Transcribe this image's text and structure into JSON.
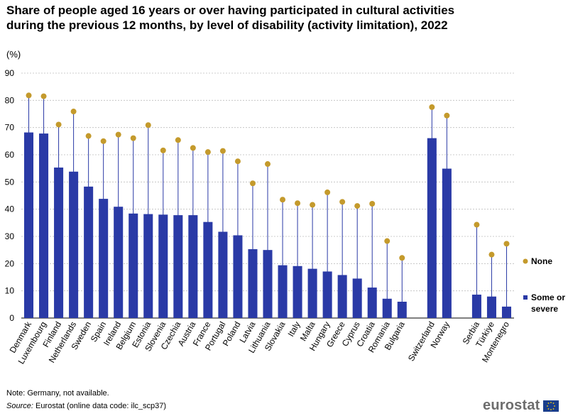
{
  "title": "Share of people aged 16 years or over having participated in cultural activities during the previous 12 months, by level of disability (activity limitation), 2022",
  "unit": "(%)",
  "note": "Note: Germany, not available.",
  "source_label": "Source:",
  "source_text": " Eurostat (online data code: ilc_scp37)",
  "logo_text": "eurostat",
  "colors": {
    "bar": "#2a3aa6",
    "dot": "#c49a2c",
    "grid": "#bdbdbd",
    "stem": "#2a3aa6"
  },
  "chart_data": {
    "type": "bar",
    "title": "Share of people aged 16 years or over having participated in cultural activities during the previous 12 months, by level of disability (activity limitation), 2022",
    "ylabel": "(%)",
    "xlabel": "",
    "ylim": [
      0,
      90
    ],
    "yticks": [
      0,
      10,
      20,
      30,
      40,
      50,
      60,
      70,
      80,
      90
    ],
    "grid": true,
    "legend_position": "right",
    "categories": [
      "Denmark",
      "Luxembourg",
      "Finland",
      "Netherlands",
      "Sweden",
      "Spain",
      "Ireland",
      "Belgium",
      "Estonia",
      "Slovenia",
      "Czechia",
      "Austria",
      "France",
      "Portugal",
      "Poland",
      "Latvia",
      "Lithuania",
      "Slovakia",
      "Italy",
      "Malta",
      "Hungary",
      "Greece",
      "Cyprus",
      "Croatia",
      "Romania",
      "Bulgaria",
      "",
      "Switzerland",
      "Norway",
      "",
      "Serbia",
      "Türkiye",
      "Montenegro"
    ],
    "series": [
      {
        "name": "Some or severe",
        "mark": "bar",
        "values": [
          68.2,
          67.8,
          55.3,
          53.8,
          48.3,
          43.8,
          40.9,
          38.4,
          38.2,
          38.0,
          37.8,
          37.8,
          35.3,
          31.7,
          30.4,
          25.3,
          25.0,
          19.4,
          19.1,
          18.1,
          17.1,
          15.8,
          14.5,
          11.2,
          7.1,
          6.0,
          null,
          66.1,
          54.9,
          null,
          8.6,
          7.9,
          4.2
        ]
      },
      {
        "name": "None",
        "mark": "dot",
        "values": [
          81.8,
          81.5,
          71.1,
          75.9,
          66.9,
          65.0,
          67.4,
          66.1,
          70.9,
          61.6,
          65.4,
          62.5,
          61.0,
          61.4,
          57.6,
          49.5,
          56.6,
          43.5,
          42.2,
          41.6,
          46.2,
          42.7,
          41.2,
          42.0,
          28.3,
          22.1,
          null,
          77.5,
          74.4,
          null,
          34.3,
          23.3,
          27.3
        ]
      }
    ],
    "legend": [
      {
        "name": "None",
        "mark": "dot"
      },
      {
        "name": "Some or severe",
        "mark": "bar"
      }
    ]
  }
}
